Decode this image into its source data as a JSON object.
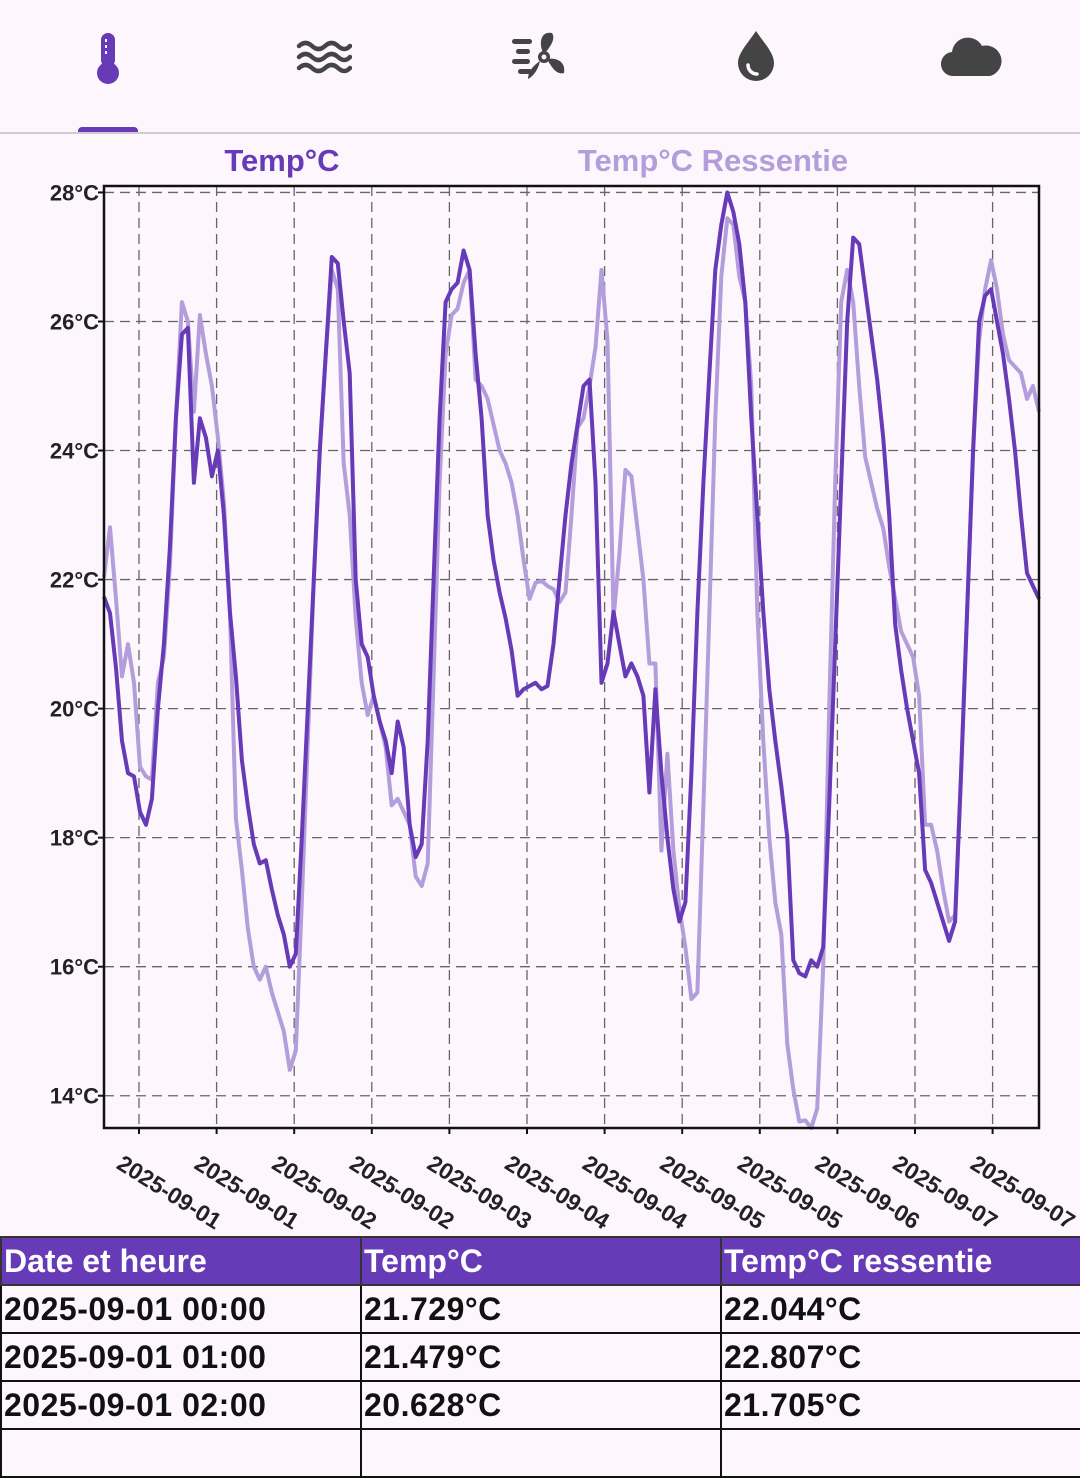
{
  "tabs": [
    {
      "icon": "thermometer-icon",
      "selected": true
    },
    {
      "icon": "waves-icon",
      "selected": false
    },
    {
      "icon": "wind-fan-icon",
      "selected": false
    },
    {
      "icon": "water-drop-icon",
      "selected": false
    },
    {
      "icon": "cloud-icon",
      "selected": false
    }
  ],
  "colors": {
    "accent": "#673ab7",
    "secondary": "#b39ddb",
    "icon_inactive": "#444444"
  },
  "chart_data": {
    "type": "line",
    "legend": [
      "Temp°C",
      "Temp°C Ressentie"
    ],
    "ylim": [
      13.5,
      28.1
    ],
    "y_ticks": [
      "14°C",
      "16°C",
      "18°C",
      "20°C",
      "22°C",
      "24°C",
      "26°C",
      "28°C"
    ],
    "x_tick_labels": [
      "2025-09-01",
      "2025-09-01",
      "2025-09-02",
      "2025-09-02",
      "2025-09-03",
      "2025-09-04",
      "2025-09-04",
      "2025-09-05",
      "2025-09-05",
      "2025-09-06",
      "2025-09-07",
      "2025-09-07"
    ],
    "grid": true,
    "series": [
      {
        "name": "Temp°C",
        "color": "#673ab7",
        "values": [
          21.73,
          21.48,
          20.63,
          19.5,
          19.0,
          18.95,
          18.4,
          18.2,
          18.6,
          20.0,
          21.0,
          22.5,
          24.5,
          25.8,
          25.9,
          23.5,
          24.5,
          24.2,
          23.6,
          24.0,
          23.0,
          21.5,
          20.5,
          19.2,
          18.5,
          17.9,
          17.6,
          17.65,
          17.2,
          16.8,
          16.5,
          16.0,
          16.2,
          18.0,
          20.0,
          22.0,
          24.0,
          25.5,
          27.0,
          26.9,
          26.0,
          25.2,
          22.0,
          21.0,
          20.8,
          20.2,
          19.8,
          19.5,
          19.0,
          19.8,
          19.4,
          18.2,
          17.7,
          17.9,
          19.5,
          22.0,
          24.5,
          26.3,
          26.5,
          26.6,
          27.1,
          26.8,
          25.5,
          24.5,
          23.0,
          22.3,
          21.8,
          21.4,
          20.9,
          20.2,
          20.3,
          20.35,
          20.4,
          20.3,
          20.35,
          21.0,
          22.0,
          23.0,
          23.8,
          24.4,
          25.0,
          25.1,
          23.5,
          20.4,
          20.7,
          21.5,
          21.0,
          20.5,
          20.7,
          20.5,
          20.2,
          18.7,
          20.3,
          19.0,
          18.0,
          17.2,
          16.7,
          17.0,
          19.0,
          21.5,
          23.5,
          25.2,
          26.8,
          27.5,
          28.0,
          27.7,
          27.2,
          26.3,
          24.5,
          23.0,
          21.5,
          20.3,
          19.5,
          18.8,
          18.0,
          16.1,
          15.9,
          15.85,
          16.1,
          16.0,
          16.3,
          18.5,
          21.0,
          23.5,
          26.0,
          27.3,
          27.2,
          26.5,
          25.8,
          25.1,
          24.2,
          23.0,
          21.3,
          20.6,
          20.0,
          19.5,
          19.0,
          17.5,
          17.3,
          17.0,
          16.7,
          16.4,
          16.7,
          19.0,
          21.5,
          24.0,
          26.0,
          26.4,
          26.5,
          26.0,
          25.5,
          24.8,
          24.0,
          23.0,
          22.1,
          21.9,
          21.7
        ]
      },
      {
        "name": "Temp°C Ressentie",
        "color": "#b39ddb",
        "values": [
          22.04,
          22.81,
          21.7,
          20.5,
          21.0,
          20.4,
          19.1,
          18.95,
          18.9,
          20.4,
          20.8,
          22.2,
          24.5,
          26.3,
          26.0,
          24.6,
          26.1,
          25.5,
          25.0,
          24.2,
          23.2,
          21.5,
          18.3,
          17.5,
          16.6,
          16.0,
          15.8,
          16.0,
          15.6,
          15.3,
          15.0,
          14.4,
          14.7,
          17.0,
          19.5,
          22.0,
          24.0,
          25.5,
          26.8,
          26.5,
          23.8,
          23.0,
          21.4,
          20.4,
          19.9,
          20.2,
          19.8,
          19.4,
          18.5,
          18.6,
          18.4,
          18.2,
          17.4,
          17.25,
          17.6,
          20.5,
          23.5,
          25.5,
          26.1,
          26.2,
          26.6,
          26.8,
          25.1,
          25.0,
          24.8,
          24.4,
          24.0,
          23.8,
          23.5,
          23.0,
          22.3,
          21.7,
          21.95,
          21.98,
          21.9,
          21.85,
          21.65,
          21.8,
          23.0,
          24.35,
          24.5,
          25.0,
          25.6,
          26.8,
          25.7,
          21.4,
          22.4,
          23.7,
          23.6,
          22.8,
          22.0,
          20.7,
          20.7,
          17.8,
          19.3,
          17.8,
          16.9,
          16.3,
          15.5,
          15.6,
          18.5,
          21.5,
          24.5,
          26.7,
          27.6,
          27.5,
          26.7,
          26.3,
          25.0,
          21.5,
          19.5,
          18.0,
          17.0,
          16.5,
          14.8,
          14.1,
          13.6,
          13.62,
          13.5,
          13.8,
          16.0,
          20.0,
          23.5,
          26.3,
          26.8,
          26.3,
          25.0,
          23.9,
          23.5,
          23.1,
          22.8,
          22.2,
          21.7,
          21.2,
          21.0,
          20.8,
          20.2,
          18.2,
          18.2,
          17.8,
          17.2,
          16.7,
          16.8,
          19.0,
          21.5,
          24.0,
          25.7,
          26.5,
          26.95,
          26.5,
          25.8,
          25.4,
          25.3,
          25.2,
          24.8,
          25.0,
          24.6
        ]
      }
    ]
  },
  "table": {
    "headers": [
      "Date et heure",
      "Temp°C",
      "Temp°C ressentie"
    ],
    "rows": [
      [
        "2025-09-01 00:00",
        "21.729°C",
        "22.044°C"
      ],
      [
        "2025-09-01 01:00",
        "21.479°C",
        "22.807°C"
      ],
      [
        "2025-09-01 02:00",
        "20.628°C",
        "21.705°C"
      ],
      [
        "",
        "",
        ""
      ]
    ]
  }
}
